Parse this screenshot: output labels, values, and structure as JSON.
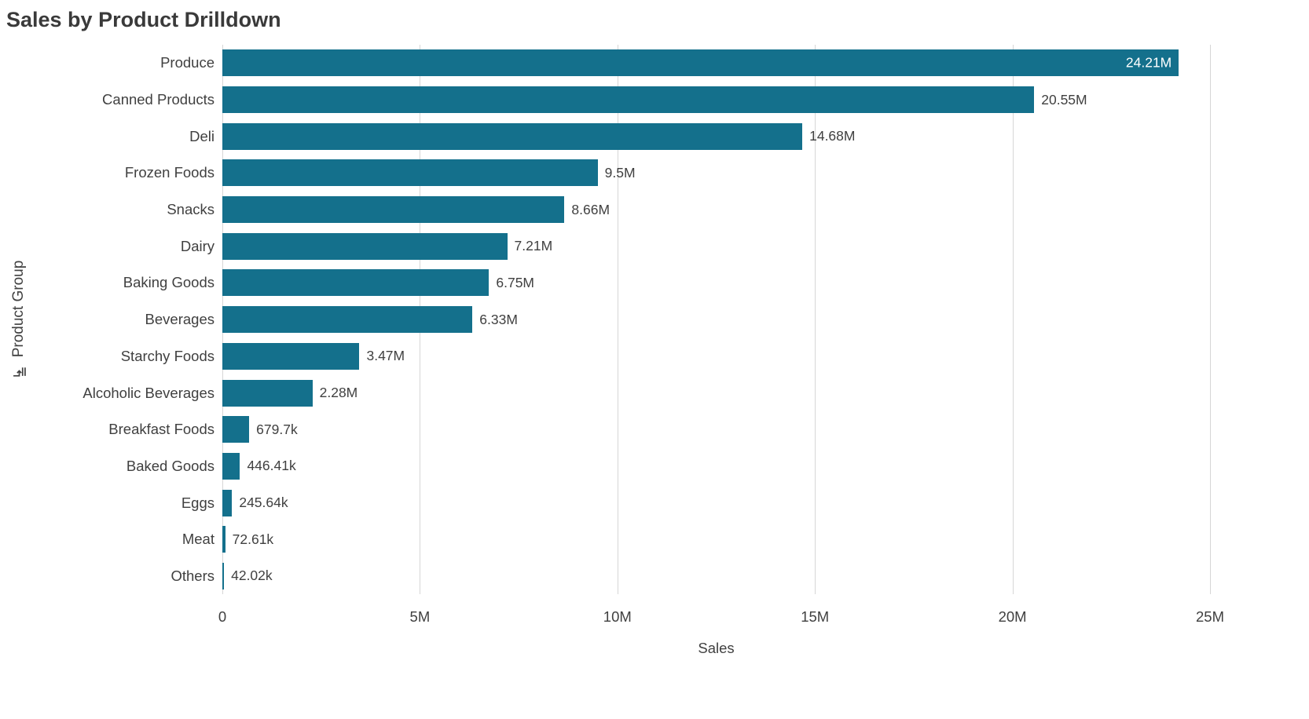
{
  "title": "Sales by Product Drilldown",
  "chart_data": {
    "type": "bar",
    "orientation": "horizontal",
    "title": "Sales by Product Drilldown",
    "xlabel": "Sales",
    "ylabel": "Product Group",
    "xlim": [
      0,
      25000000
    ],
    "grid": "vertical",
    "bar_color": "#14708c",
    "inside_label_color": "#ffffff",
    "outside_label_color": "#404040",
    "categories": [
      "Produce",
      "Canned Products",
      "Deli",
      "Frozen Foods",
      "Snacks",
      "Dairy",
      "Baking Goods",
      "Beverages",
      "Starchy Foods",
      "Alcoholic Beverages",
      "Breakfast Foods",
      "Baked Goods",
      "Eggs",
      "Meat",
      "Others"
    ],
    "values": [
      24210000,
      20550000,
      14680000,
      9500000,
      8660000,
      7210000,
      6750000,
      6330000,
      3470000,
      2280000,
      679700,
      446410,
      245640,
      72610,
      42020
    ],
    "value_labels": [
      "24.21M",
      "20.55M",
      "14.68M",
      "9.5M",
      "8.66M",
      "7.21M",
      "6.75M",
      "6.33M",
      "3.47M",
      "2.28M",
      "679.7k",
      "446.41k",
      "245.64k",
      "72.61k",
      "42.02k"
    ],
    "x_ticks": [
      {
        "label": "0",
        "value": 0
      },
      {
        "label": "5M",
        "value": 5000000
      },
      {
        "label": "10M",
        "value": 10000000
      },
      {
        "label": "15M",
        "value": 15000000
      },
      {
        "label": "20M",
        "value": 20000000
      },
      {
        "label": "25M",
        "value": 25000000
      }
    ]
  }
}
